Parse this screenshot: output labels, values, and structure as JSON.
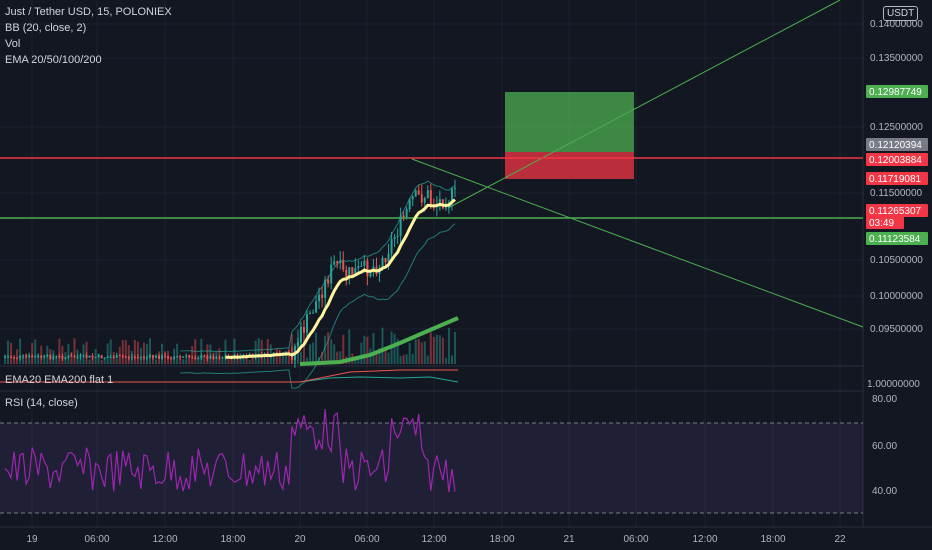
{
  "header": {
    "symbol_line": "Just / Tether USD, 15, POLONIEX",
    "indicator_bb": "BB (20, close, 2)",
    "indicator_vol": "Vol",
    "indicator_ema": "EMA 20/50/100/200",
    "currency_button": "USDT"
  },
  "price_axis": {
    "ticks": [
      "0.14000000",
      "0.13500000",
      "0.12500000",
      "0.11500000",
      "0.10500000",
      "0.10000000",
      "0.09500000"
    ],
    "tags": [
      {
        "text": "0.12987749",
        "bg": "#4caf50",
        "fg": "#ffffff"
      },
      {
        "text": "0.12120394",
        "bg": "#787b86",
        "fg": "#ffffff"
      },
      {
        "text": "0.12003884",
        "bg": "#f23645",
        "fg": "#ffffff"
      },
      {
        "text": "0.11719081",
        "bg": "#f23645",
        "fg": "#ffffff"
      },
      {
        "text": "0.11265307",
        "bg": "#f23645",
        "fg": "#ffffff"
      },
      {
        "text": "03:49",
        "bg": "#f23645",
        "fg": "#ffffff"
      },
      {
        "text": "0.11123584",
        "bg": "#4caf50",
        "fg": "#ffffff"
      }
    ]
  },
  "ema_pane": {
    "label": "EMA20 EMA200 flat 1",
    "value": "1.00000000"
  },
  "rsi_pane": {
    "label": "RSI (14, close)",
    "ticks": [
      "80.00",
      "60.00",
      "40.00"
    ]
  },
  "time_axis": {
    "labels": [
      "19",
      "06:00",
      "12:00",
      "18:00",
      "20",
      "06:00",
      "12:00",
      "18:00",
      "21",
      "06:00",
      "12:00",
      "18:00",
      "22"
    ]
  },
  "colors": {
    "background": "#131722",
    "bull": "#26a69a",
    "bear": "#ef5350",
    "resistance_line": "#f23645",
    "support_line": "#4caf50",
    "ema_fast": "#fff59d",
    "ema_slow": "#4caf50",
    "rsi_line": "#9c27b0"
  }
}
